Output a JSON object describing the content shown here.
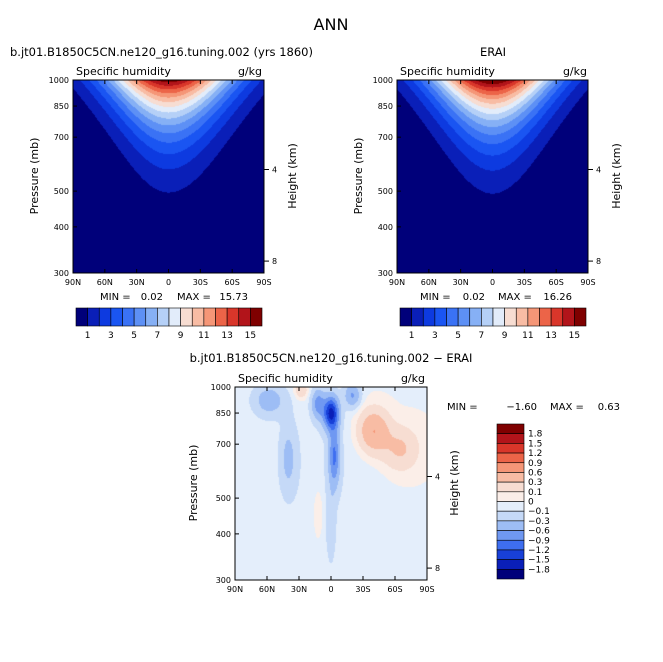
{
  "page": {
    "season": "ANN",
    "left_title": "b.jt01.B1850C5CN.ne120_g16.tuning.002 (yrs 1860)",
    "right_title": "ERAI",
    "bottom_title": "b.jt01.B1850C5CN.ne120_g16.tuning.002 − ERAI"
  },
  "chart_data": [
    {
      "type": "heatmap",
      "id": "model",
      "title": "b.jt01.B1850C5CN.ne120_g16.tuning.002 (yrs 1860)",
      "variable": "Specific humidity",
      "units": "g/kg",
      "ylabel": "Pressure (mb)",
      "y2label": "Height (km)",
      "x_ticks": [
        "90N",
        "60N",
        "30N",
        "0",
        "30S",
        "60S",
        "90S"
      ],
      "y_ticks": [
        300,
        400,
        500,
        700,
        850,
        1000
      ],
      "y2_ticks": [
        8,
        4
      ],
      "xlim": [
        90,
        -90
      ],
      "ylim": [
        1000,
        300
      ],
      "y_scale": "log",
      "stats": {
        "min_label": "MIN =",
        "min": "0.02",
        "max_label": "MAX =",
        "max": "15.73"
      },
      "colorbar": {
        "orientation": "horizontal",
        "labels": [
          "1",
          "3",
          "5",
          "7",
          "9",
          "11",
          "13",
          "15"
        ],
        "levels": [
          1,
          2,
          3,
          4,
          5,
          6,
          7,
          8,
          9,
          10,
          11,
          12,
          13,
          14,
          15
        ],
        "colors": [
          "#00007a",
          "#0a1fb8",
          "#0d3ae0",
          "#1a55f2",
          "#3a72f5",
          "#5d90f5",
          "#86b0f5",
          "#b5d0f7",
          "#e2ecfa",
          "#f7ddd2",
          "#f8bca4",
          "#f59677",
          "#ec6448",
          "#d9362a",
          "#b2141a",
          "#7f0000"
        ]
      },
      "peak_label": {
        "lat": 0,
        "p": 1000,
        "value": 15.7
      },
      "missing_region": {
        "lat_range": [
          -50,
          -90
        ],
        "p_range": [
          930,
          1000
        ]
      }
    },
    {
      "type": "heatmap",
      "id": "obs",
      "title": "ERAI",
      "variable": "Specific humidity",
      "units": "g/kg",
      "ylabel": "Pressure (mb)",
      "y2label": "Height (km)",
      "x_ticks": [
        "90N",
        "60N",
        "30N",
        "0",
        "30S",
        "60S",
        "90S"
      ],
      "y_ticks": [
        300,
        400,
        500,
        700,
        850,
        1000
      ],
      "y2_ticks": [
        8,
        4
      ],
      "xlim": [
        90,
        -90
      ],
      "ylim": [
        1000,
        300
      ],
      "y_scale": "log",
      "stats": {
        "min_label": "MIN =",
        "min": "0.02",
        "max_label": "MAX =",
        "max": "16.26"
      },
      "colorbar": {
        "orientation": "horizontal",
        "labels": [
          "1",
          "3",
          "5",
          "7",
          "9",
          "11",
          "13",
          "15"
        ],
        "levels": [
          1,
          2,
          3,
          4,
          5,
          6,
          7,
          8,
          9,
          10,
          11,
          12,
          13,
          14,
          15
        ],
        "colors": [
          "#00007a",
          "#0a1fb8",
          "#0d3ae0",
          "#1a55f2",
          "#3a72f5",
          "#5d90f5",
          "#86b0f5",
          "#b5d0f7",
          "#e2ecfa",
          "#f7ddd2",
          "#f8bca4",
          "#f59677",
          "#ec6448",
          "#d9362a",
          "#b2141a",
          "#7f0000"
        ]
      },
      "peak_label": {
        "lat": 0,
        "p": 1000,
        "value": 16.3
      }
    },
    {
      "type": "heatmap",
      "id": "diff",
      "title": "b.jt01.B1850C5CN.ne120_g16.tuning.002 − ERAI",
      "variable": "Specific humidity",
      "units": "g/kg",
      "ylabel": "Pressure (mb)",
      "y2label": "Height (km)",
      "x_ticks": [
        "90N",
        "60N",
        "30N",
        "0",
        "30S",
        "60S",
        "90S"
      ],
      "y_ticks": [
        300,
        400,
        500,
        700,
        850,
        1000
      ],
      "y2_ticks": [
        8,
        4
      ],
      "xlim": [
        90,
        -90
      ],
      "ylim": [
        1000,
        300
      ],
      "y_scale": "log",
      "stats": {
        "min_label": "MIN =",
        "min": "−1.60",
        "max_label": "MAX =",
        "max": "0.63"
      },
      "colorbar": {
        "orientation": "vertical",
        "labels": [
          "1.8",
          "1.5",
          "1.2",
          "0.9",
          "0.6",
          "0.3",
          "0.1",
          "0",
          "−0.1",
          "−0.3",
          "−0.6",
          "−0.9",
          "−1.2",
          "−1.5",
          "−1.8"
        ],
        "colors_top_to_bottom": [
          "#7f0000",
          "#b2141a",
          "#d9362a",
          "#ec6448",
          "#f59677",
          "#f8bca4",
          "#f7ddd2",
          "#fbeee8",
          "#e4eefb",
          "#c5d9f7",
          "#9dbdf5",
          "#6f98f2",
          "#3e6ef0",
          "#1840d8",
          "#0a1fb8",
          "#00007a"
        ]
      },
      "missing_region": {
        "lat_range": [
          -50,
          -90
        ],
        "p_range": [
          930,
          1000
        ]
      }
    }
  ]
}
